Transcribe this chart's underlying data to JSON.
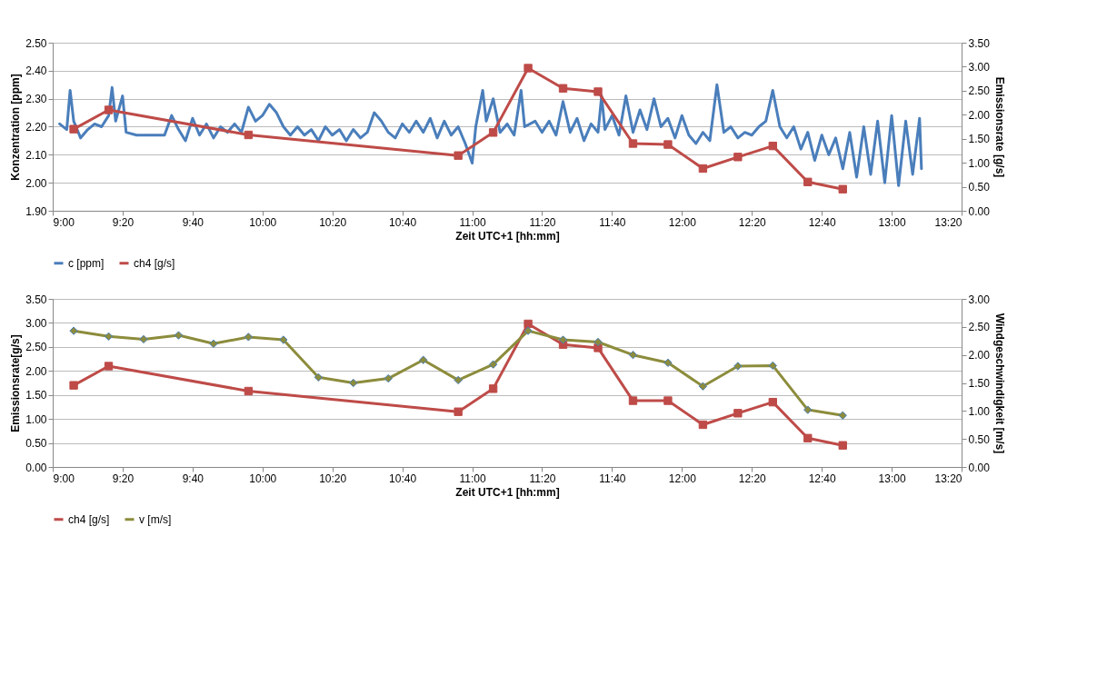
{
  "chart_data": [
    {
      "type": "line",
      "xlabel": "Zeit UTC+1 [hh:mm]",
      "ylabel": "Konzentration [ppm]",
      "y2label": "Emissionsrate [g/s]",
      "xlim": [
        9,
        13.3333
      ],
      "xticks": [
        {
          "value": 9,
          "label": "9:00"
        },
        {
          "value": 9.3333,
          "label": "9:20"
        },
        {
          "value": 9.6667,
          "label": "9:40"
        },
        {
          "value": 10,
          "label": "10:00"
        },
        {
          "value": 10.3333,
          "label": "10:20"
        },
        {
          "value": 10.6667,
          "label": "10:40"
        },
        {
          "value": 11,
          "label": "11:00"
        },
        {
          "value": 11.3333,
          "label": "11:20"
        },
        {
          "value": 11.6667,
          "label": "11:40"
        },
        {
          "value": 12,
          "label": "12:00"
        },
        {
          "value": 12.3333,
          "label": "12:20"
        },
        {
          "value": 12.6667,
          "label": "12:40"
        },
        {
          "value": 13,
          "label": "13:00"
        },
        {
          "value": 13.3333,
          "label": "13:20"
        }
      ],
      "ylim": [
        1.9,
        2.5
      ],
      "yticks": [
        {
          "value": 1.9,
          "label": "1.90"
        },
        {
          "value": 2.0,
          "label": "2.00"
        },
        {
          "value": 2.1,
          "label": "2.10"
        },
        {
          "value": 2.2,
          "label": "2.20"
        },
        {
          "value": 2.3,
          "label": "2.30"
        },
        {
          "value": 2.4,
          "label": "2.40"
        },
        {
          "value": 2.5,
          "label": "2.50"
        }
      ],
      "y2lim": [
        0,
        3.5
      ],
      "y2ticks": [
        {
          "value": 0,
          "label": "0.00"
        },
        {
          "value": 0.5,
          "label": "0.50"
        },
        {
          "value": 1.0,
          "label": "1.00"
        },
        {
          "value": 1.5,
          "label": "1.50"
        },
        {
          "value": 2.0,
          "label": "2.00"
        },
        {
          "value": 2.5,
          "label": "2.50"
        },
        {
          "value": 3.0,
          "label": "3.00"
        },
        {
          "value": 3.5,
          "label": "3.50"
        }
      ],
      "grid": "y",
      "legend": "bottom",
      "series": [
        {
          "name": "c [ppm]",
          "color": "#4a7ebb",
          "marker": "none",
          "x": [
            9.033,
            9.067,
            9.083,
            9.1,
            9.133,
            9.167,
            9.2,
            9.233,
            9.267,
            9.283,
            9.3,
            9.333,
            9.35,
            9.4,
            9.467,
            9.533,
            9.567,
            9.6,
            9.633,
            9.667,
            9.7,
            9.733,
            9.767,
            9.8,
            9.833,
            9.867,
            9.9,
            9.933,
            9.967,
            10.0,
            10.033,
            10.067,
            10.1,
            10.133,
            10.167,
            10.2,
            10.233,
            10.267,
            10.3,
            10.333,
            10.367,
            10.4,
            10.433,
            10.467,
            10.5,
            10.533,
            10.567,
            10.6,
            10.633,
            10.667,
            10.7,
            10.733,
            10.767,
            10.8,
            10.833,
            10.867,
            10.9,
            10.933,
            10.967,
            11.0,
            11.017,
            11.05,
            11.067,
            11.1,
            11.133,
            11.167,
            11.2,
            11.233,
            11.25,
            11.3,
            11.333,
            11.367,
            11.4,
            11.433,
            11.467,
            11.5,
            11.533,
            11.567,
            11.6,
            11.617,
            11.633,
            11.667,
            11.7,
            11.733,
            11.767,
            11.8,
            11.833,
            11.867,
            11.9,
            11.933,
            11.967,
            12.0,
            12.033,
            12.067,
            12.1,
            12.133,
            12.167,
            12.2,
            12.233,
            12.267,
            12.3,
            12.333,
            12.367,
            12.4,
            12.433,
            12.467,
            12.5,
            12.533,
            12.567,
            12.6,
            12.633,
            12.667,
            12.7,
            12.733,
            12.767,
            12.8,
            12.833,
            12.867,
            12.9,
            12.933,
            12.967,
            13.0,
            13.033,
            13.067,
            13.1,
            13.133,
            13.142
          ],
          "values": [
            2.21,
            2.19,
            2.33,
            2.22,
            2.16,
            2.19,
            2.21,
            2.2,
            2.24,
            2.34,
            2.22,
            2.31,
            2.18,
            2.17,
            2.17,
            2.17,
            2.24,
            2.19,
            2.15,
            2.23,
            2.17,
            2.21,
            2.16,
            2.2,
            2.18,
            2.21,
            2.18,
            2.27,
            2.22,
            2.24,
            2.28,
            2.25,
            2.2,
            2.17,
            2.2,
            2.17,
            2.19,
            2.15,
            2.2,
            2.17,
            2.19,
            2.15,
            2.19,
            2.16,
            2.18,
            2.25,
            2.22,
            2.18,
            2.16,
            2.21,
            2.18,
            2.22,
            2.18,
            2.23,
            2.16,
            2.22,
            2.17,
            2.2,
            2.14,
            2.07,
            2.2,
            2.33,
            2.22,
            2.3,
            2.18,
            2.21,
            2.17,
            2.33,
            2.2,
            2.22,
            2.18,
            2.22,
            2.17,
            2.29,
            2.18,
            2.23,
            2.15,
            2.21,
            2.18,
            2.31,
            2.19,
            2.24,
            2.17,
            2.31,
            2.18,
            2.26,
            2.19,
            2.3,
            2.2,
            2.23,
            2.16,
            2.24,
            2.17,
            2.14,
            2.18,
            2.15,
            2.35,
            2.18,
            2.2,
            2.16,
            2.18,
            2.17,
            2.2,
            2.22,
            2.33,
            2.2,
            2.16,
            2.2,
            2.12,
            2.18,
            2.08,
            2.17,
            2.1,
            2.16,
            2.05,
            2.18,
            2.02,
            2.2,
            2.03,
            2.22,
            2.0,
            2.24,
            1.99,
            2.22,
            2.03,
            2.23,
            2.05
          ]
        },
        {
          "name": "ch4 [g/s]",
          "color": "#be4b48",
          "marker": "square",
          "axis": "y2",
          "x": [
            9.1,
            9.2667,
            9.9333,
            10.9333,
            11.1,
            11.2667,
            11.4333,
            11.6,
            11.7667,
            11.9333,
            12.1,
            12.2667,
            12.4333,
            12.6,
            12.7667
          ],
          "values": [
            1.7,
            2.1,
            1.58,
            1.15,
            1.63,
            2.97,
            2.55,
            2.48,
            1.4,
            1.38,
            0.88,
            1.12,
            1.35,
            0.6,
            0.45
          ]
        }
      ]
    },
    {
      "type": "line",
      "xlabel": "Zeit UTC+1 [hh:mm]",
      "ylabel": "Emissionsrate[g/s]",
      "y2label": "Windgeschwindigkeit [m/s]",
      "xlim": [
        9,
        13.3333
      ],
      "xticks": [
        {
          "value": 9,
          "label": "9:00"
        },
        {
          "value": 9.3333,
          "label": "9:20"
        },
        {
          "value": 9.6667,
          "label": "9:40"
        },
        {
          "value": 10,
          "label": "10:00"
        },
        {
          "value": 10.3333,
          "label": "10:20"
        },
        {
          "value": 10.6667,
          "label": "10:40"
        },
        {
          "value": 11,
          "label": "11:00"
        },
        {
          "value": 11.3333,
          "label": "11:20"
        },
        {
          "value": 11.6667,
          "label": "11:40"
        },
        {
          "value": 12,
          "label": "12:00"
        },
        {
          "value": 12.3333,
          "label": "12:20"
        },
        {
          "value": 12.6667,
          "label": "12:40"
        },
        {
          "value": 13,
          "label": "13:00"
        },
        {
          "value": 13.3333,
          "label": "13:20"
        }
      ],
      "ylim": [
        0,
        3.5
      ],
      "yticks": [
        {
          "value": 0,
          "label": "0.00"
        },
        {
          "value": 0.5,
          "label": "0.50"
        },
        {
          "value": 1.0,
          "label": "1.00"
        },
        {
          "value": 1.5,
          "label": "1.50"
        },
        {
          "value": 2.0,
          "label": "2.00"
        },
        {
          "value": 2.5,
          "label": "2.50"
        },
        {
          "value": 3.0,
          "label": "3.00"
        },
        {
          "value": 3.5,
          "label": "3.50"
        }
      ],
      "y2lim": [
        0,
        3
      ],
      "y2ticks": [
        {
          "value": 0,
          "label": "0.00"
        },
        {
          "value": 0.5,
          "label": "0.50"
        },
        {
          "value": 1.0,
          "label": "1.00"
        },
        {
          "value": 1.5,
          "label": "1.50"
        },
        {
          "value": 2.0,
          "label": "2.00"
        },
        {
          "value": 2.5,
          "label": "2.50"
        },
        {
          "value": 3.0,
          "label": "3.00"
        }
      ],
      "grid": "y",
      "legend": "bottom",
      "series": [
        {
          "name": "ch4 [g/s]",
          "color": "#be4b48",
          "marker": "square",
          "x": [
            9.1,
            9.2667,
            9.9333,
            10.9333,
            11.1,
            11.2667,
            11.4333,
            11.6,
            11.7667,
            11.9333,
            12.1,
            12.2667,
            12.4333,
            12.6,
            12.7667
          ],
          "values": [
            1.7,
            2.1,
            1.58,
            1.15,
            1.63,
            2.98,
            2.55,
            2.48,
            1.38,
            1.38,
            0.88,
            1.12,
            1.35,
            0.6,
            0.45
          ]
        },
        {
          "name": "v [m/s]",
          "color": "#8c8c3c",
          "marker": "diamond",
          "axis": "y2",
          "x": [
            9.1,
            9.2667,
            9.4333,
            9.6,
            9.7667,
            9.9333,
            10.1,
            10.2667,
            10.4333,
            10.6,
            10.7667,
            10.9333,
            11.1,
            11.2667,
            11.4333,
            11.6,
            11.7667,
            11.9333,
            12.1,
            12.2667,
            12.4333,
            12.6,
            12.7667
          ],
          "values": [
            2.43,
            2.33,
            2.28,
            2.35,
            2.2,
            2.32,
            2.27,
            1.6,
            1.5,
            1.58,
            1.91,
            1.55,
            1.83,
            2.43,
            2.27,
            2.23,
            2.0,
            1.86,
            1.44,
            1.8,
            1.81,
            1.02,
            0.92
          ]
        }
      ]
    }
  ]
}
